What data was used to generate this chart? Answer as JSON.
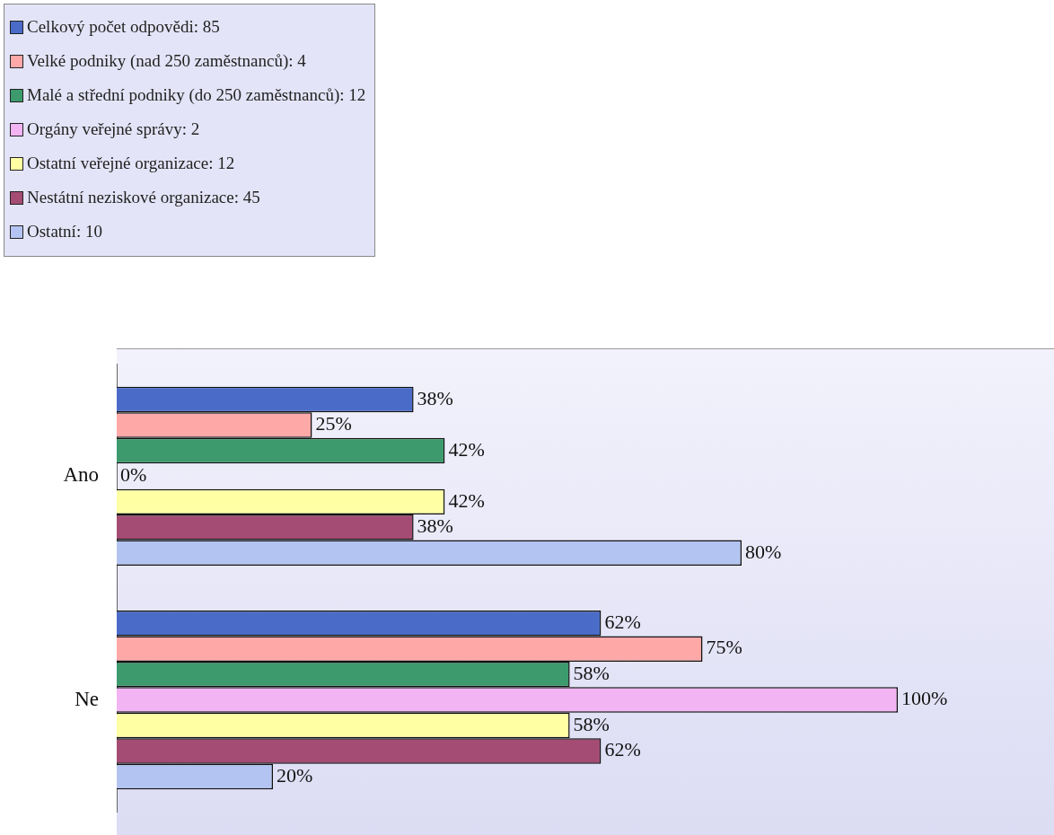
{
  "chart_data": {
    "type": "bar",
    "orientation": "horizontal",
    "categories": [
      "Ano",
      "Ne"
    ],
    "xlim": [
      0,
      120
    ],
    "legend": "top left",
    "series": [
      {
        "name": "Celkový počet odpovědi: 85",
        "color": "#4a6cc8",
        "values": [
          38,
          62
        ],
        "value_labels": [
          "38%",
          "62%"
        ]
      },
      {
        "name": "Velké podniky (nad 250 zaměstnanců): 4",
        "color": "#ffa8a8",
        "values": [
          25,
          75
        ],
        "value_labels": [
          "25%",
          "75%"
        ]
      },
      {
        "name": "Malé a střední podniky (do 250 zaměstnanců): 12",
        "color": "#3c9a6c",
        "values": [
          42,
          58
        ],
        "value_labels": [
          "42%",
          "58%"
        ]
      },
      {
        "name": "Orgány veřejné správy: 2",
        "color": "#f2b4f2",
        "values": [
          0,
          100
        ],
        "value_labels": [
          "0%",
          "100%"
        ]
      },
      {
        "name": "Ostatní veřejné organizace: 12",
        "color": "#ffffa4",
        "values": [
          42,
          58
        ],
        "value_labels": [
          "42%",
          "58%"
        ]
      },
      {
        "name": "Nestátní neziskové organizace: 45",
        "color": "#a44c74",
        "values": [
          38,
          62
        ],
        "value_labels": [
          "38%",
          "62%"
        ]
      },
      {
        "name": "Ostatní: 10",
        "color": "#b4c4f2",
        "values": [
          80,
          20
        ],
        "value_labels": [
          "80%",
          "20%"
        ]
      }
    ]
  }
}
